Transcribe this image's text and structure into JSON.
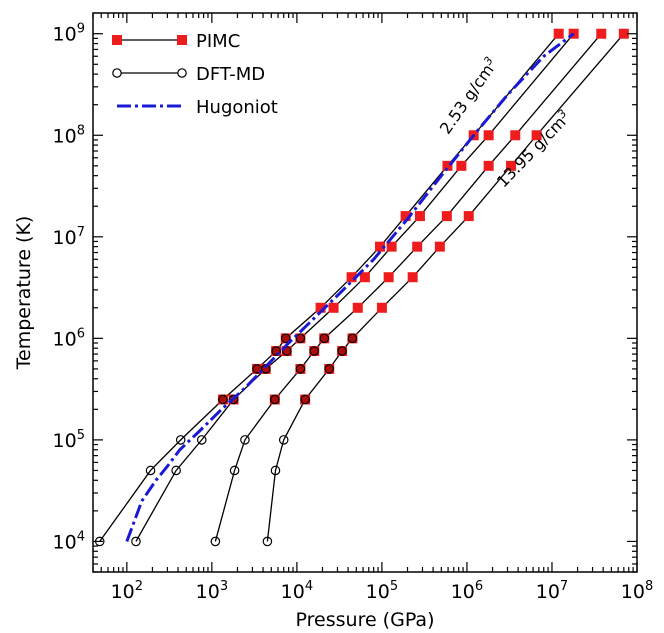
{
  "chart_data": {
    "type": "line",
    "xlabel": "Pressure (GPa)",
    "ylabel": "Temperature (K)",
    "xscale": "log",
    "yscale": "log",
    "xlim": [
      40,
      100000000
    ],
    "ylim": [
      5000,
      1600000000
    ],
    "grid": false,
    "legend_position": "top-left",
    "x_ticks": [
      {
        "value": 100,
        "base": "10",
        "exp": "2"
      },
      {
        "value": 1000,
        "base": "10",
        "exp": "3"
      },
      {
        "value": 10000,
        "base": "10",
        "exp": "4"
      },
      {
        "value": 100000,
        "base": "10",
        "exp": "5"
      },
      {
        "value": 1000000,
        "base": "10",
        "exp": "6"
      },
      {
        "value": 10000000,
        "base": "10",
        "exp": "7"
      },
      {
        "value": 100000000,
        "base": "10",
        "exp": "8"
      }
    ],
    "y_ticks": [
      {
        "value": 10000,
        "base": "10",
        "exp": "4"
      },
      {
        "value": 100000,
        "base": "10",
        "exp": "5"
      },
      {
        "value": 1000000,
        "base": "10",
        "exp": "6"
      },
      {
        "value": 10000000,
        "base": "10",
        "exp": "7"
      },
      {
        "value": 100000000,
        "base": "10",
        "exp": "8"
      },
      {
        "value": 1000000000,
        "base": "10",
        "exp": "9"
      }
    ],
    "legend": [
      {
        "label": "PIMC",
        "kind": "pimc"
      },
      {
        "label": "DFT-MD",
        "kind": "dft"
      },
      {
        "label": "Hugoniot",
        "kind": "hugoniot"
      }
    ],
    "annotations": [
      {
        "text": "2.53 g/cm",
        "sup": "3",
        "x": 600000,
        "y": 100000000,
        "angle": -55
      },
      {
        "text": "13.95 g/cm",
        "sup": "3",
        "x": 2700000,
        "y": 30000000,
        "angle": -46
      }
    ],
    "series": [
      {
        "kind": "isochore",
        "points": [
          [
            48,
            10000
          ],
          [
            190,
            50000
          ],
          [
            430,
            100000
          ],
          [
            1350,
            250000
          ],
          [
            3400,
            500000
          ],
          [
            5700,
            750000
          ],
          [
            7400,
            1000000
          ],
          [
            19000,
            2000000
          ],
          [
            44000,
            4000000
          ],
          [
            95000,
            8000000
          ],
          [
            190000,
            16000000
          ],
          [
            590000,
            50000000
          ],
          [
            1200000,
            100000000
          ],
          [
            12000000,
            1000000000
          ]
        ]
      },
      {
        "kind": "isochore",
        "points": [
          [
            128,
            10000
          ],
          [
            380,
            50000
          ],
          [
            760,
            100000
          ],
          [
            1800,
            250000
          ],
          [
            4300,
            500000
          ],
          [
            7600,
            750000
          ],
          [
            11000,
            1000000
          ],
          [
            27000,
            2000000
          ],
          [
            63000,
            4000000
          ],
          [
            130000,
            8000000
          ],
          [
            280000,
            16000000
          ],
          [
            860000,
            50000000
          ],
          [
            1800000,
            100000000
          ],
          [
            18000000,
            1000000000
          ]
        ]
      },
      {
        "kind": "isochore",
        "points": [
          [
            1100,
            10000
          ],
          [
            1850,
            50000
          ],
          [
            2450,
            100000
          ],
          [
            5500,
            250000
          ],
          [
            11000,
            500000
          ],
          [
            16000,
            750000
          ],
          [
            21000,
            1000000
          ],
          [
            52000,
            2000000
          ],
          [
            120000,
            4000000
          ],
          [
            260000,
            8000000
          ],
          [
            580000,
            16000000
          ],
          [
            1800000,
            50000000
          ],
          [
            3700000,
            100000000
          ],
          [
            38000000,
            1000000000
          ]
        ]
      },
      {
        "kind": "isochore",
        "points": [
          [
            4500,
            10000
          ],
          [
            5600,
            50000
          ],
          [
            7000,
            100000
          ],
          [
            12500,
            250000
          ],
          [
            24000,
            500000
          ],
          [
            34000,
            750000
          ],
          [
            45000,
            1000000
          ],
          [
            100000,
            2000000
          ],
          [
            230000,
            4000000
          ],
          [
            480000,
            8000000
          ],
          [
            1050000,
            16000000
          ],
          [
            3300000,
            50000000
          ],
          [
            6600000,
            100000000
          ],
          [
            70000000,
            1000000000
          ]
        ]
      }
    ],
    "hugoniot": [
      [
        100,
        10000
      ],
      [
        150,
        25000
      ],
      [
        220,
        40000
      ],
      [
        300,
        55000
      ],
      [
        420,
        80000
      ],
      [
        700,
        120000
      ],
      [
        1300,
        200000
      ],
      [
        2500,
        330000
      ],
      [
        5000,
        600000
      ],
      [
        8000,
        900000
      ],
      [
        15000,
        1500000
      ],
      [
        35000,
        3000000
      ],
      [
        80000,
        6000000
      ],
      [
        200000,
        15000000
      ],
      [
        500000,
        40000000
      ],
      [
        1200000,
        100000000
      ],
      [
        3000000,
        250000000
      ],
      [
        8000000,
        600000000
      ],
      [
        18000000,
        1000000000
      ]
    ]
  }
}
